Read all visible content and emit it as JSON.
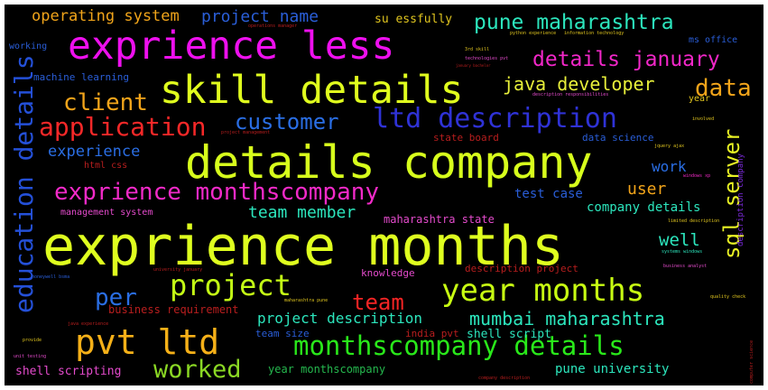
{
  "words": {
    "w1": "exprience months",
    "w2": "details company",
    "w3": "exprience less",
    "w4": "skill details",
    "w5": "pvt ltd",
    "w6": "year months",
    "w7": "monthscompany details",
    "w8": "ltd description",
    "w9": "exprience monthscompany",
    "w10": "pune maharashtra",
    "w11": "details january",
    "w12": "java developer",
    "w13": "application",
    "w14": "project",
    "w15": "education details",
    "w16": "sql server",
    "w17": "customer",
    "w18": "client",
    "w19": "data",
    "w20": "team",
    "w21": "per",
    "w22": "worked",
    "w23": "mumbai maharashtra",
    "w24": "operating system",
    "w25": "project name",
    "w26": "team member",
    "w27": "project description",
    "w28": "pune university",
    "w29": "experience",
    "w30": "well",
    "w31": "company details",
    "w32": "user",
    "w33": "work",
    "w34": "test case",
    "w35": "machine learning",
    "w36": "business requirement",
    "w37": "year monthscompany",
    "w38": "shell scripting",
    "w39": "shell script",
    "w40": "india pvt",
    "w41": "state board",
    "w42": "data science",
    "w43": "maharashtra state",
    "w44": "knowledge",
    "w45": "description project",
    "w46": "team size",
    "w47": "html css",
    "w48": "management system",
    "w49": "su essfully",
    "w50": "ms office",
    "w51": "working",
    "w52": "description company",
    "w53": "year",
    "w54": "description responsibilities",
    "w55": "python experience",
    "w56": "information technology",
    "w57": "operations manager",
    "w58": "technologies pvt",
    "w59": "january bachelor",
    "w60": "involved",
    "w61": "project management",
    "w62": "jquery ajax",
    "w63": "limited description",
    "w64": "quality check",
    "w65": "systems windows",
    "w66": "business analyst",
    "w67": "university january",
    "w68": "maharashtra pune",
    "w69": "java experience",
    "w70": "provide",
    "w71": "honeywell bsma",
    "w72": "company description",
    "w73": "computer science",
    "w74": "unit testing",
    "w75": "3rd skill",
    "w76": "windows xp"
  }
}
